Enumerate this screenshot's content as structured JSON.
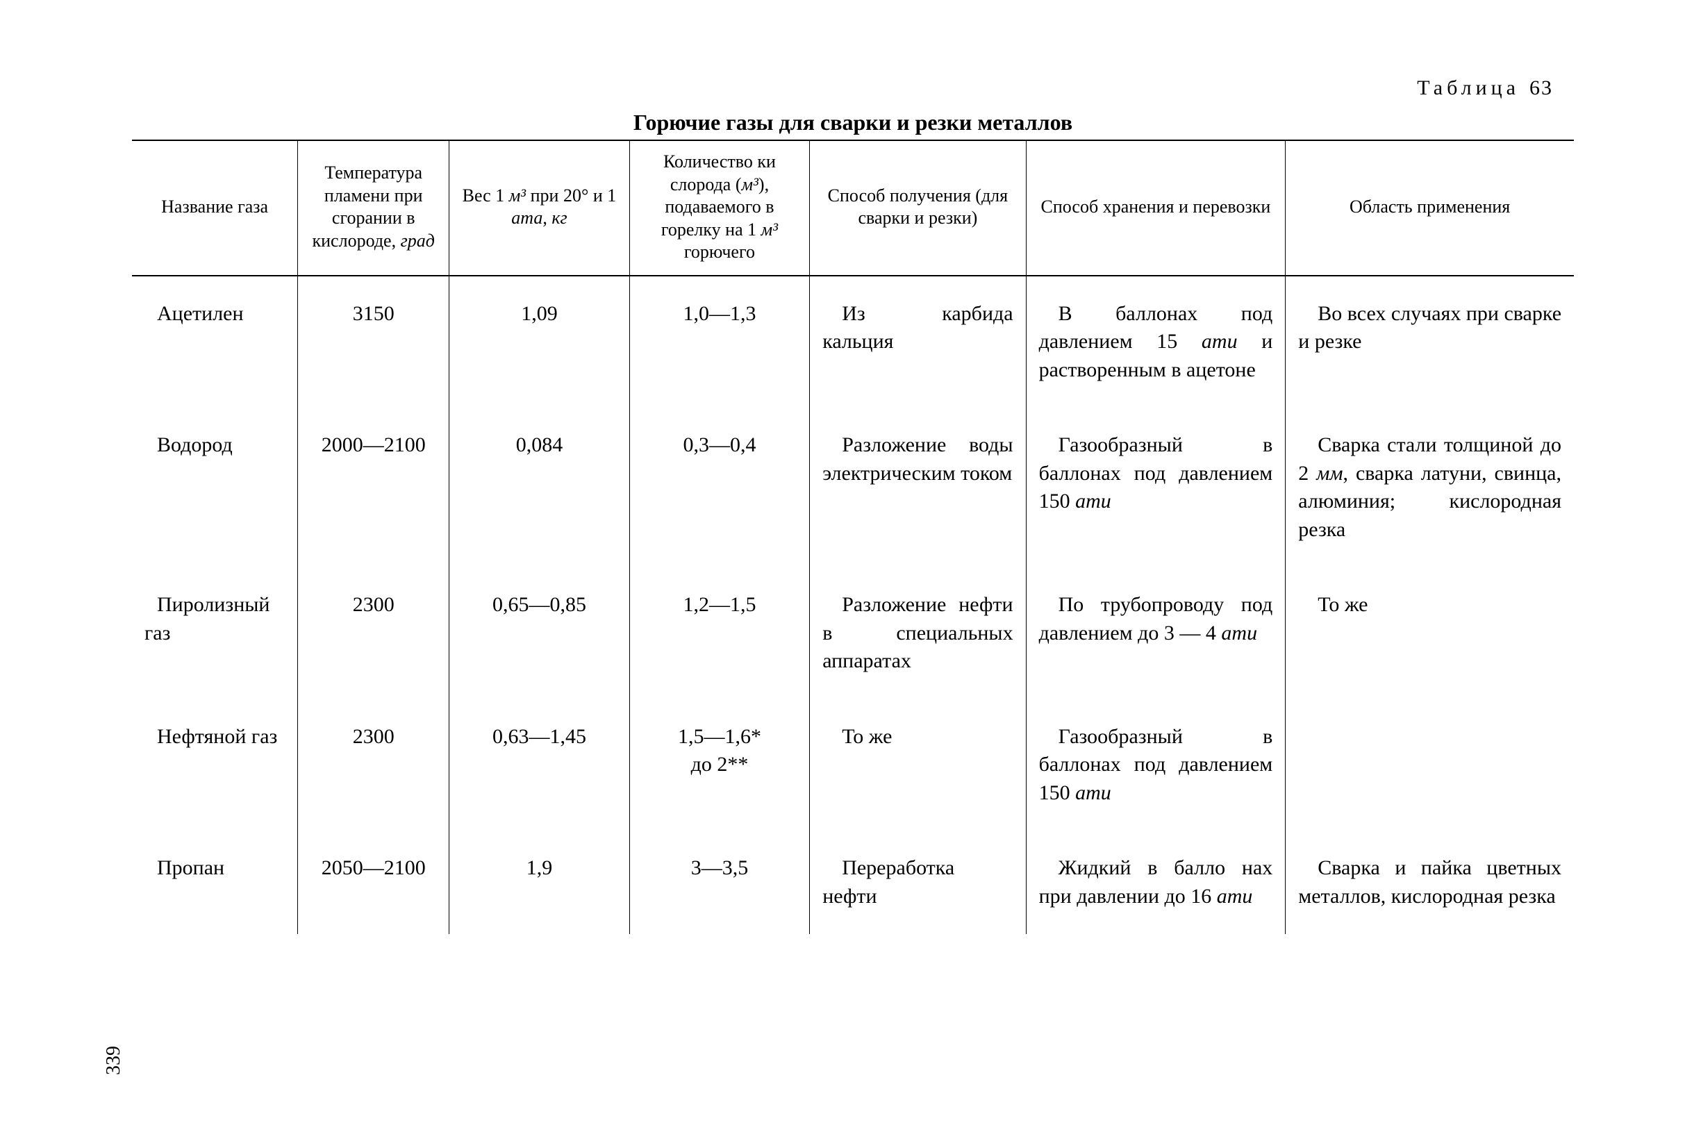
{
  "page_number": "339",
  "table_label_word": "Таблица",
  "table_label_num": "63",
  "table_title": "Горючие газы для сварки и резки металлов",
  "columns": {
    "widths_percent": [
      11.5,
      10.5,
      12.5,
      12.5,
      15,
      18,
      20
    ],
    "headers_html": [
      "Название газа",
      "Температура пламени при сгорании в кислороде, <span class='ital'>град</span>",
      "Вес 1 <span class='ital'>м³</span> при 20° и 1 <span class='ital'>ата</span>, <span class='ital'>кг</span>",
      "Количество ки слорода (<span class='ital'>м³</span>), подаваемого в горелку на 1 <span class='ital'>м³</span> горючего",
      "Способ получения (для сварки и резки)",
      "Способ хранения и перевозки",
      "Область применения"
    ]
  },
  "rows": [
    [
      "Ацетилен",
      "3150",
      "1,09",
      "1,0—1,3",
      "Из карбида кальция",
      "В баллонах под давлением 15 <span class='ital'>ати</span> и растворенным в ацето­не",
      "Во всех случаях при сварке и резке"
    ],
    [
      "Водород",
      "2000—2100",
      "0,084",
      "0,3—0,4",
      "Разложение воды электриче­ским током",
      "Газообразный в баллонах под давлени­ем 150 <span class='ital'>ати</span>",
      "Сварка стали тол­щиной до 2 <span class='ital'>мм</span>, свар­ка латуни, свинца, алюминия; кислород­ная резка"
    ],
    [
      "Пиролизный газ",
      "2300",
      "0,65—0,85",
      "1,2—1,5",
      "Разложение нефти в специ­альных аппара­тах",
      "По трубопроводу под давлением до 3 — 4 <span class='ital'>ати</span>",
      "То же"
    ],
    [
      "Нефтяной газ",
      "2300",
      "0,63—1,45",
      "1,5—1,6*<br>до 2**",
      "То же",
      "Газообразный в баллонах под давлени­ем 150 <span class='ital'>ати</span>",
      ""
    ],
    [
      "Пропан",
      "2050—2100",
      "1,9",
      "3—3,5",
      "Переработ­ка нефти",
      "Жидкий в балло нах при давлении до 16 <span class='ital'>ати</span>",
      "Сварка и пайка цветных металлов, кислородная резка"
    ]
  ]
}
